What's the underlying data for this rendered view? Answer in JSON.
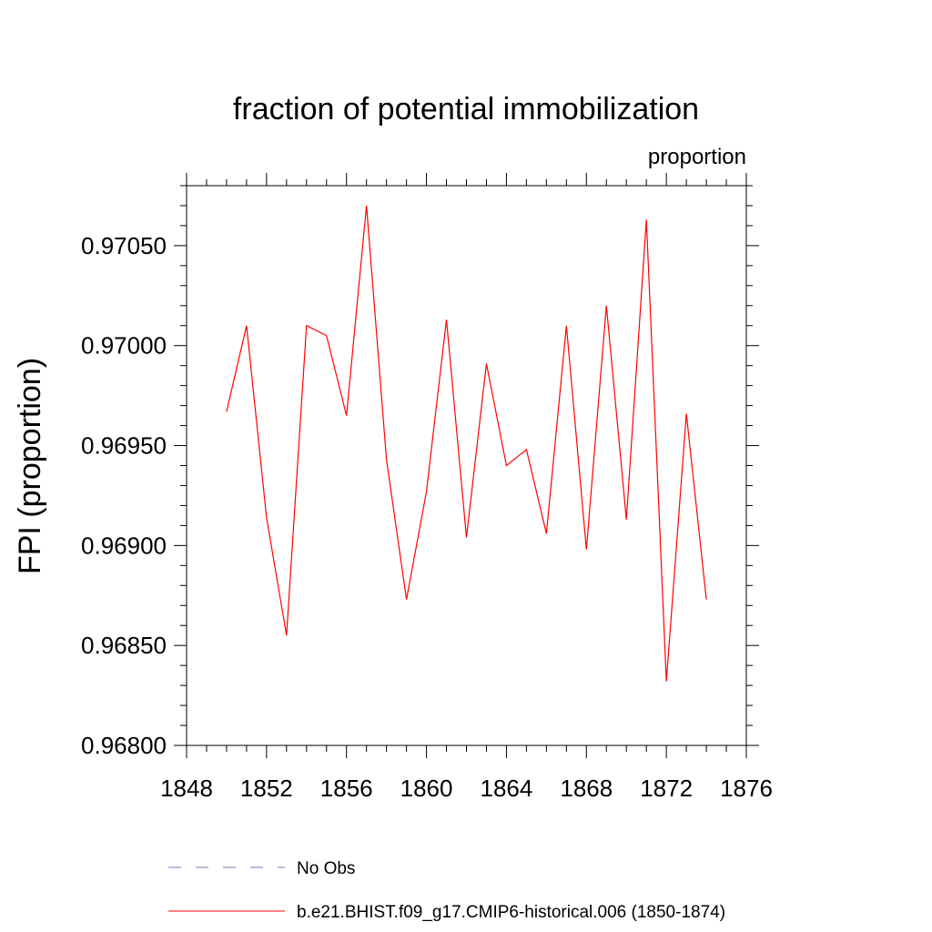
{
  "chart_data": {
    "type": "line",
    "title": "fraction of potential immobilization",
    "units_label": "proportion",
    "ylabel": "FPI  (proportion)",
    "xlabel": "",
    "xlim": [
      1848,
      1876
    ],
    "ylim": [
      0.968,
      0.9708
    ],
    "xticks": [
      1848,
      1852,
      1856,
      1860,
      1864,
      1868,
      1872,
      1876
    ],
    "xtick_labels": [
      "1848",
      "1852",
      "1856",
      "1860",
      "1864",
      "1868",
      "1872",
      "1876"
    ],
    "yticks": [
      0.968,
      0.9685,
      0.969,
      0.9695,
      0.97,
      0.9705
    ],
    "ytick_labels": [
      "0.96800",
      "0.96850",
      "0.96900",
      "0.96950",
      "0.97000",
      "0.97050"
    ],
    "x_minor_step": 1,
    "y_minor_step": 0.0001,
    "grid": false,
    "series": [
      {
        "name": "b.e21.BHIST.f09_g17.CMIP6-historical.006 (1850-1874)",
        "color": "#ff0000",
        "style": "solid",
        "x": [
          1850,
          1851,
          1852,
          1853,
          1854,
          1855,
          1856,
          1857,
          1858,
          1859,
          1860,
          1861,
          1862,
          1863,
          1864,
          1865,
          1866,
          1867,
          1868,
          1869,
          1870,
          1871,
          1872,
          1873,
          1874
        ],
        "values": [
          0.96967,
          0.9701,
          0.96914,
          0.96855,
          0.9701,
          0.97005,
          0.96965,
          0.9707,
          0.96943,
          0.96873,
          0.96927,
          0.97013,
          0.96904,
          0.96991,
          0.9694,
          0.96948,
          0.96906,
          0.9701,
          0.96898,
          0.9702,
          0.96913,
          0.97063,
          0.96832,
          0.96966,
          0.96873
        ]
      }
    ],
    "legend": {
      "placement": "bottom",
      "entries": [
        {
          "label": "No Obs",
          "color": "#7a7abf",
          "style": "dashed"
        },
        {
          "label": "b.e21.BHIST.f09_g17.CMIP6-historical.006 (1850-1874)",
          "color": "#ff0000",
          "style": "solid"
        }
      ]
    }
  }
}
